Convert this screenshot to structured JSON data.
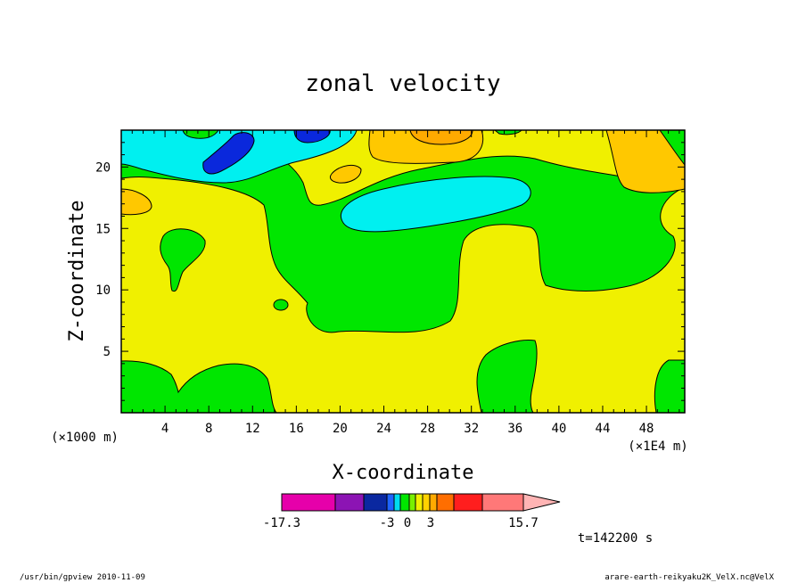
{
  "chart_data": {
    "type": "filled-contour",
    "title": "zonal velocity",
    "xlabel": "X-coordinate",
    "ylabel": "Z-coordinate",
    "x_unit_label": "(×1E4 m)",
    "y_unit_label": "(×1000 m)",
    "xlim": [
      0,
      51.5
    ],
    "ylim": [
      0,
      23
    ],
    "x_ticks": [
      4,
      8,
      12,
      16,
      20,
      24,
      28,
      32,
      36,
      40,
      44,
      48
    ],
    "y_ticks": [
      5,
      10,
      15,
      20
    ],
    "colorbar": {
      "colors": [
        "#e600aa",
        "#8c14b4",
        "#0a28a0",
        "#1e64ff",
        "#00dcf0",
        "#00e600",
        "#78f000",
        "#f0f000",
        "#ffd200",
        "#ffaa00",
        "#ff6e00",
        "#ff1e1e",
        "#ff7878",
        "#ffb4b4"
      ],
      "labels": [
        "-17.3",
        "-3",
        "0",
        "3",
        "15.7"
      ]
    },
    "time_label": "t=142200 s"
  },
  "footer": {
    "left": "/usr/bin/gpview  2010-11-09",
    "right": "arare-earth-reikyaku2K_VelX.nc@VelX"
  }
}
